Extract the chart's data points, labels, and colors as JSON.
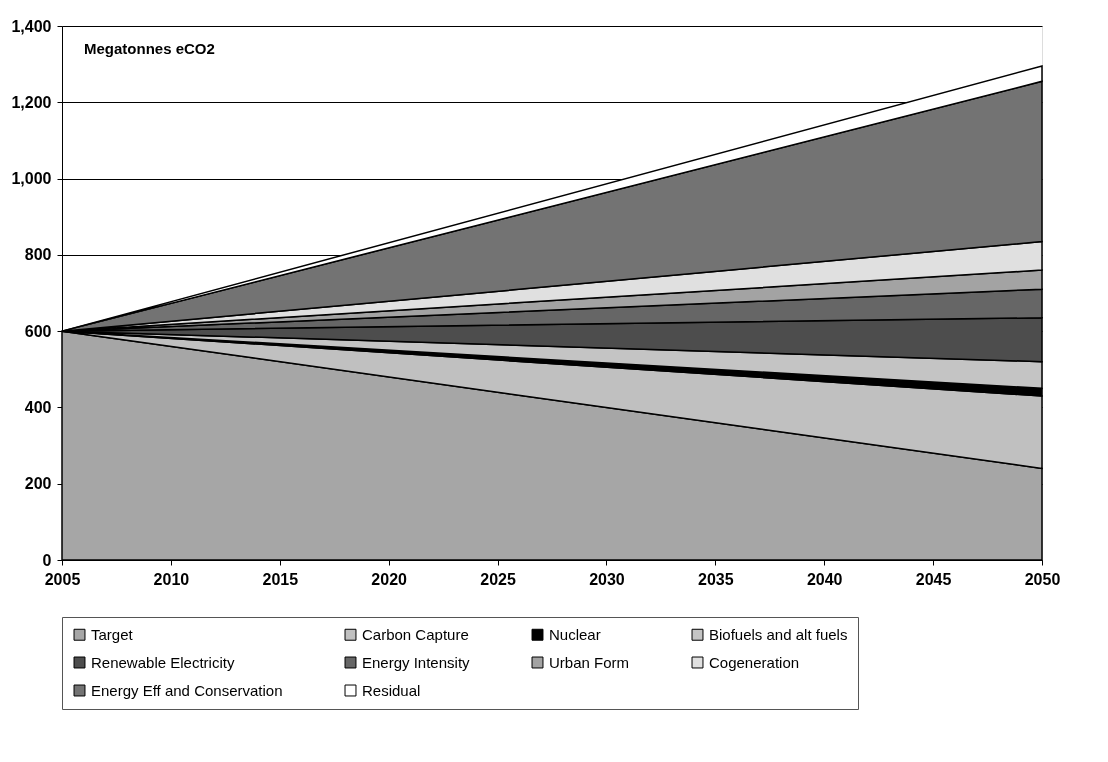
{
  "chart_data": {
    "type": "area",
    "stacked": true,
    "x": [
      2005,
      2050
    ],
    "xlim": [
      2005,
      2050
    ],
    "xticks": [
      2005,
      2010,
      2015,
      2020,
      2025,
      2030,
      2035,
      2040,
      2045,
      2050
    ],
    "ylim": [
      0,
      1400
    ],
    "yticks": [
      0,
      200,
      400,
      600,
      800,
      {
        "value": 1000,
        "label": "1,000"
      },
      {
        "value": 1200,
        "label": "1,200"
      },
      {
        "value": 1400,
        "label": "1,400"
      }
    ],
    "grid": "y",
    "legend": "bottom",
    "annotations": [
      "Megatonnes eCO2"
    ],
    "series": [
      {
        "name": "Target",
        "color": "#a6a6a6",
        "values": [
          600,
          240
        ]
      },
      {
        "name": "Carbon Capture",
        "color": "#c0c0c0",
        "values": [
          0,
          190
        ]
      },
      {
        "name": "Nuclear",
        "color": "#000000",
        "values": [
          0,
          20
        ]
      },
      {
        "name": "Biofuels and alt fuels",
        "color": "#c4c4c4",
        "values": [
          0,
          70
        ]
      },
      {
        "name": "Renewable Electricity",
        "color": "#4d4d4d",
        "values": [
          0,
          115
        ]
      },
      {
        "name": "Energy Intensity",
        "color": "#666666",
        "values": [
          0,
          75
        ]
      },
      {
        "name": "Urban Form",
        "color": "#a3a3a3",
        "values": [
          0,
          50
        ]
      },
      {
        "name": "Cogeneration",
        "color": "#e0e0e0",
        "values": [
          0,
          75
        ]
      },
      {
        "name": "Energy Eff and Conservation",
        "color": "#737373",
        "values": [
          0,
          420
        ]
      },
      {
        "name": "Residual",
        "color": "#ffffff",
        "values": [
          0,
          40
        ]
      }
    ]
  }
}
